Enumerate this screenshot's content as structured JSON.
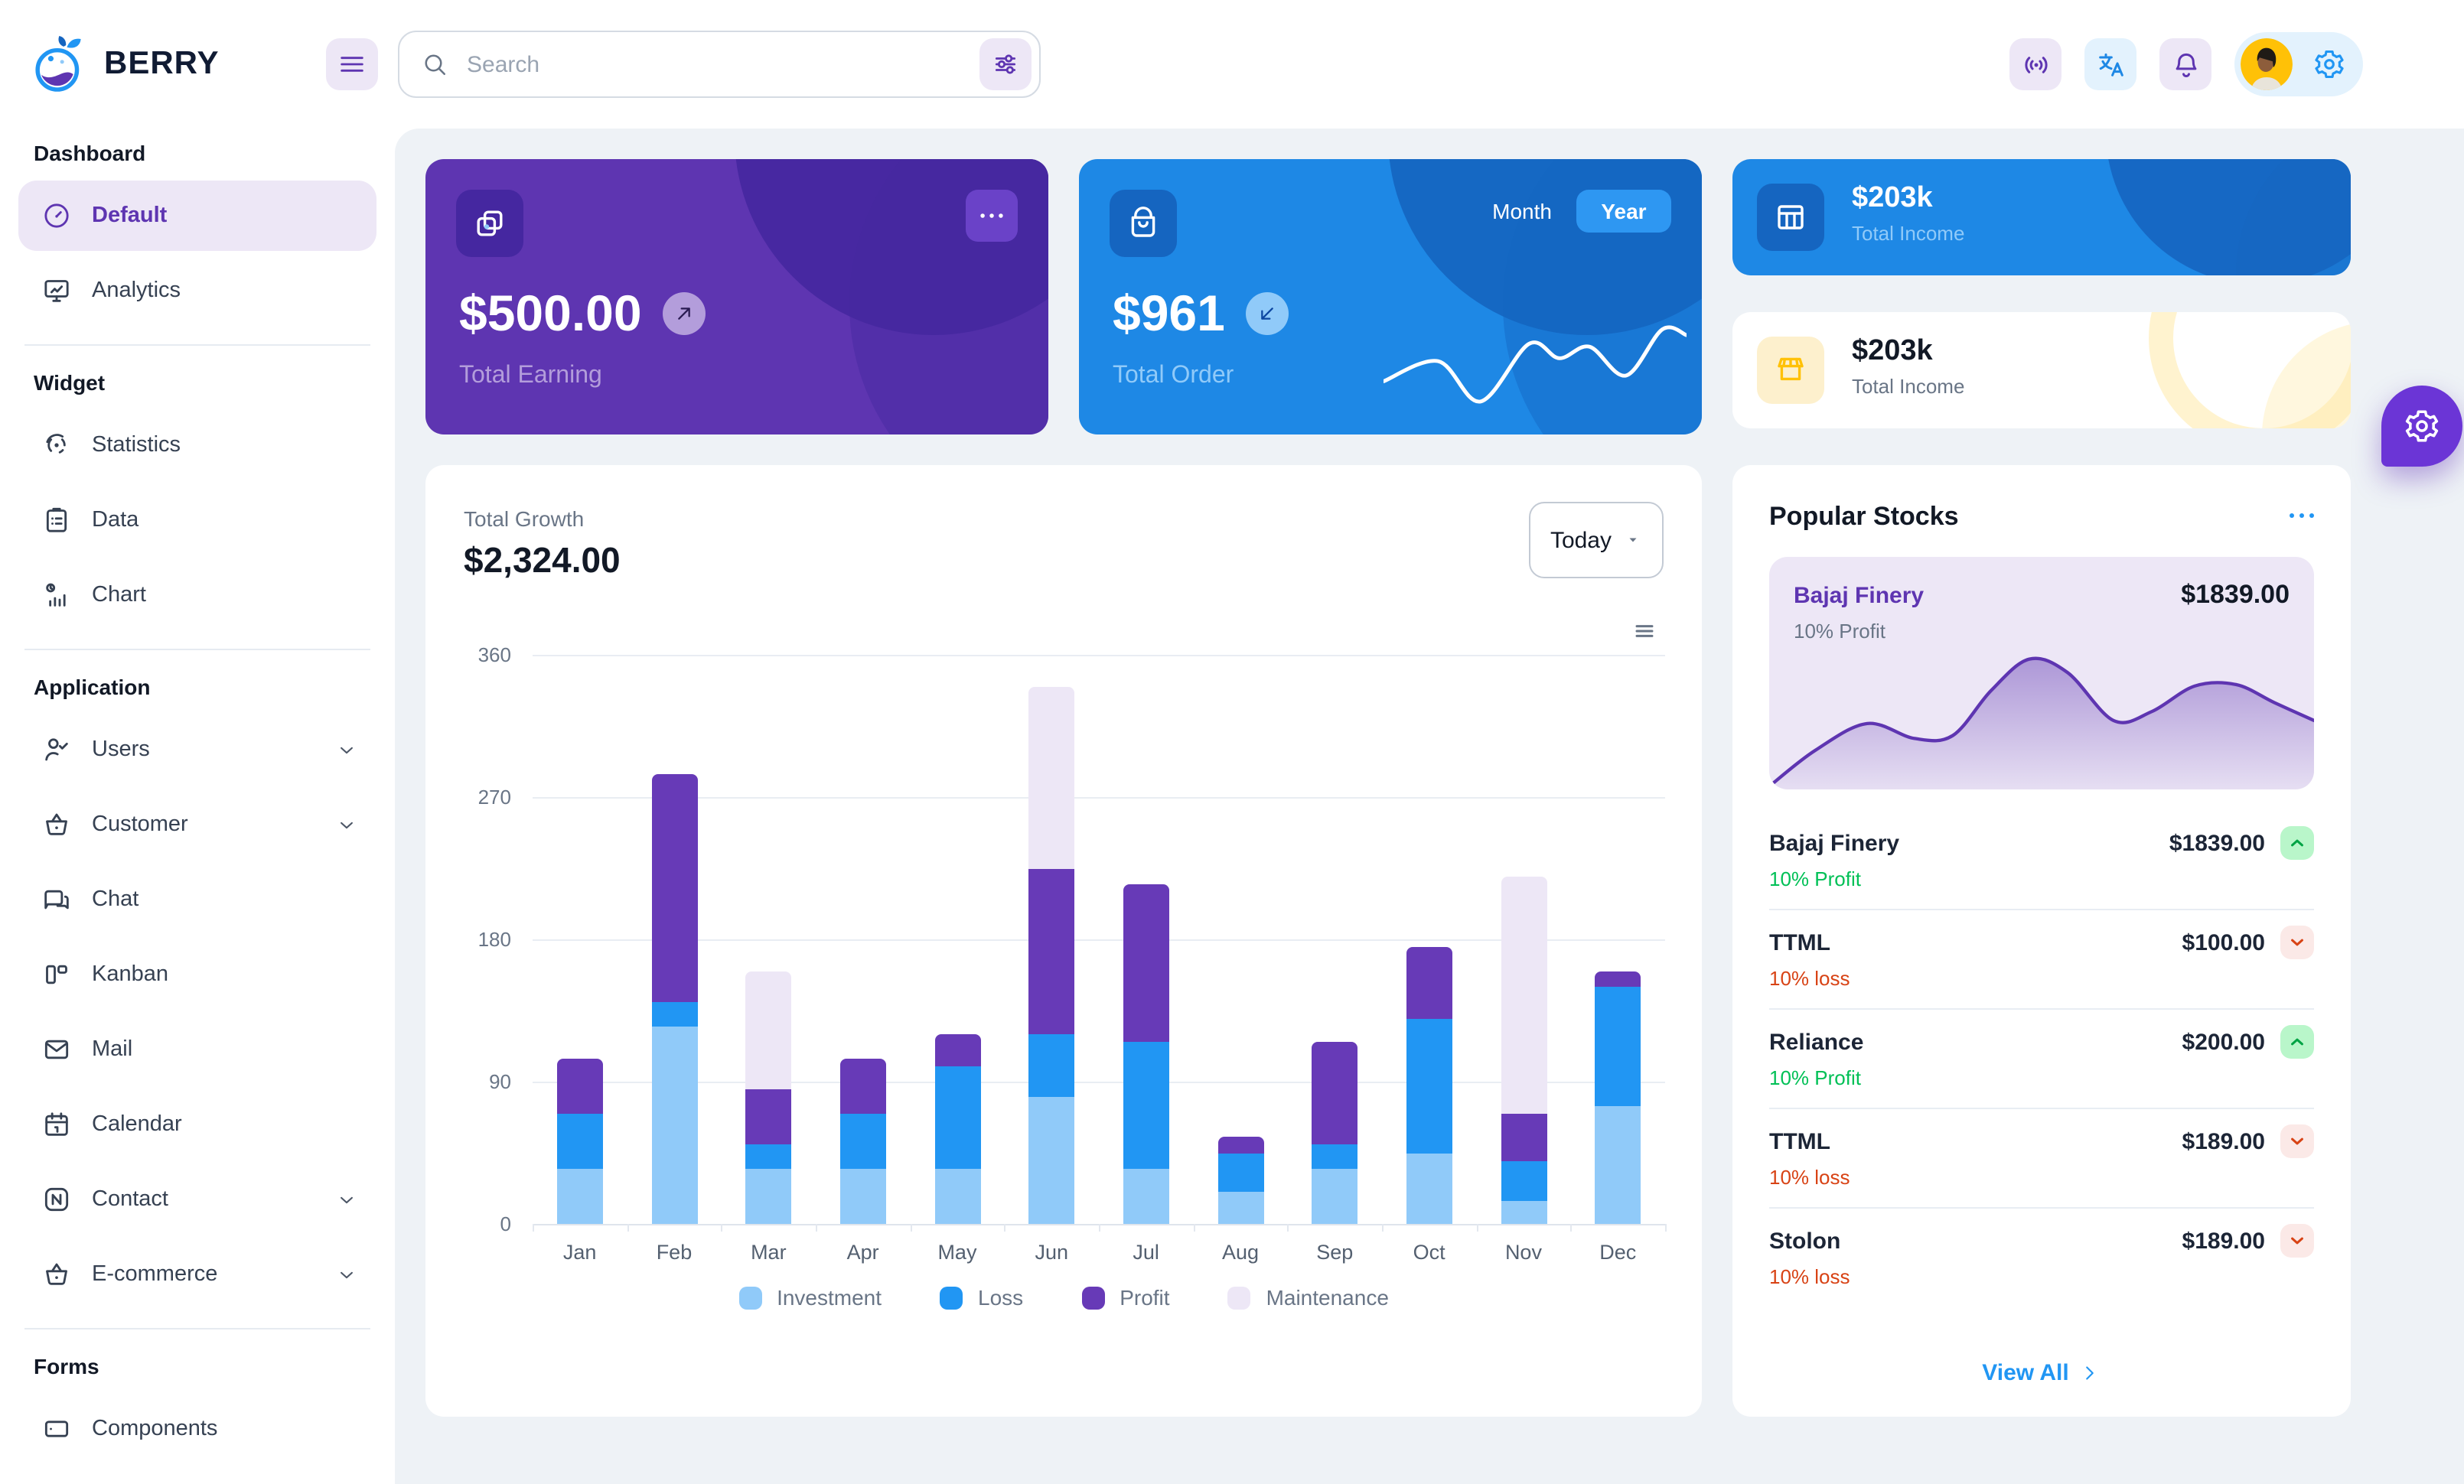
{
  "colors": {
    "primary": "#2196f3",
    "primary_dark": "#1e88e5",
    "primary_800": "#1565c0",
    "primary_200": "#90caf9",
    "primary_light": "#e3f2fd",
    "secondary": "#673ab7",
    "secondary_dark": "#5e35b1",
    "secondary_800": "#4527a0",
    "secondary_200": "#b39ddb",
    "secondary_light": "#ede7f6",
    "success_light": "#b9f6ca",
    "success_dark": "#00c853",
    "loss_light": "#fbe9e7",
    "loss_dark": "#d84315",
    "warning_light": "#fdf0cd",
    "warning_main": "#ffc107",
    "background": "#eef2f6",
    "text_dark": "#121926",
    "text_muted": "#697586"
  },
  "header": {
    "brand": "BERRY",
    "search_placeholder": "Search",
    "icons": [
      "menu",
      "search",
      "sliders",
      "broadcast",
      "translate",
      "bell",
      "settings",
      "avatar"
    ]
  },
  "sidebar": {
    "sections": [
      {
        "heading": "Dashboard",
        "items": [
          {
            "label": "Default",
            "icon": "gauge",
            "active": true
          },
          {
            "label": "Analytics",
            "icon": "monitor"
          }
        ]
      },
      {
        "heading": "Widget",
        "items": [
          {
            "label": "Statistics",
            "icon": "statistics"
          },
          {
            "label": "Data",
            "icon": "clipboard"
          },
          {
            "label": "Chart",
            "icon": "chart-clock"
          }
        ]
      },
      {
        "heading": "Application",
        "items": [
          {
            "label": "Users",
            "icon": "user-check",
            "expandable": true
          },
          {
            "label": "Customer",
            "icon": "basket",
            "expandable": true
          },
          {
            "label": "Chat",
            "icon": "chat"
          },
          {
            "label": "Kanban",
            "icon": "kanban"
          },
          {
            "label": "Mail",
            "icon": "mail"
          },
          {
            "label": "Calendar",
            "icon": "calendar"
          },
          {
            "label": "Contact",
            "icon": "contact-card",
            "expandable": true
          },
          {
            "label": "E-commerce",
            "icon": "basket",
            "expandable": true
          }
        ]
      },
      {
        "heading": "Forms",
        "items": [
          {
            "label": "Components",
            "icon": "components"
          }
        ]
      }
    ]
  },
  "cards": {
    "earning": {
      "value": "$500.00",
      "label": "Total Earning",
      "icon": "copy",
      "badge_icon": "arrow-up-right",
      "menu_icon": "more-horiz"
    },
    "order": {
      "value": "$961",
      "label": "Total Order",
      "icon": "bag",
      "badge_icon": "arrow-down-left",
      "toggle": {
        "options": [
          "Month",
          "Year"
        ],
        "selected": "Year"
      },
      "sparkline": {
        "type": "line",
        "color": "#ffffff",
        "points": [
          [
            0,
            48
          ],
          [
            36,
            34
          ],
          [
            64,
            62
          ],
          [
            96,
            22
          ],
          [
            116,
            32
          ],
          [
            136,
            24
          ],
          [
            160,
            44
          ],
          [
            184,
            12
          ],
          [
            200,
            16
          ]
        ]
      }
    },
    "income_dark": {
      "value": "$203k",
      "label": "Total Income",
      "icon": "table"
    },
    "income_light": {
      "value": "$203k",
      "label": "Total Income",
      "icon": "storefront"
    }
  },
  "growth": {
    "title": "Total Growth",
    "value": "$2,324.00",
    "period_selector": "Today",
    "chart_data": {
      "type": "bar",
      "stacked": true,
      "categories": [
        "Jan",
        "Feb",
        "Mar",
        "Apr",
        "May",
        "Jun",
        "Jul",
        "Aug",
        "Sep",
        "Oct",
        "Nov",
        "Dec"
      ],
      "series": [
        {
          "name": "Investment",
          "color": "#90caf9",
          "values": [
            35,
            125,
            35,
            35,
            35,
            80,
            35,
            20,
            35,
            45,
            15,
            75
          ]
        },
        {
          "name": "Loss",
          "color": "#2196f3",
          "values": [
            35,
            15,
            15,
            35,
            65,
            40,
            80,
            25,
            15,
            85,
            25,
            75
          ]
        },
        {
          "name": "Profit",
          "color": "#673ab7",
          "values": [
            35,
            145,
            35,
            35,
            20,
            105,
            100,
            10,
            65,
            45,
            30,
            10
          ]
        },
        {
          "name": "Maintenance",
          "color": "#ede7f6",
          "values": [
            0,
            0,
            75,
            0,
            0,
            115,
            0,
            0,
            0,
            0,
            150,
            0
          ]
        }
      ],
      "y_ticks": [
        0,
        90,
        180,
        270,
        360
      ],
      "ylim": [
        0,
        360
      ],
      "grid": true,
      "legend_position": "bottom"
    }
  },
  "stocks": {
    "title": "Popular Stocks",
    "featured": {
      "name": "Bajaj Finery",
      "price": "$1839.00",
      "change": "10% Profit",
      "chart": {
        "type": "area",
        "color": "#5e35b1",
        "points": [
          [
            0,
            94
          ],
          [
            30,
            70
          ],
          [
            64,
            52
          ],
          [
            95,
            62
          ],
          [
            120,
            60
          ],
          [
            145,
            30
          ],
          [
            170,
            9
          ],
          [
            195,
            18
          ],
          [
            225,
            50
          ],
          [
            250,
            44
          ],
          [
            278,
            27
          ],
          [
            305,
            26
          ],
          [
            330,
            38
          ],
          [
            356,
            50
          ]
        ]
      }
    },
    "items": [
      {
        "name": "Bajaj Finery",
        "price": "$1839.00",
        "change": "10% Profit",
        "direction": "up"
      },
      {
        "name": "TTML",
        "price": "$100.00",
        "change": "10% loss",
        "direction": "down"
      },
      {
        "name": "Reliance",
        "price": "$200.00",
        "change": "10% Profit",
        "direction": "up"
      },
      {
        "name": "TTML",
        "price": "$189.00",
        "change": "10% loss",
        "direction": "down"
      },
      {
        "name": "Stolon",
        "price": "$189.00",
        "change": "10% loss",
        "direction": "down"
      }
    ],
    "view_all": "View All"
  }
}
